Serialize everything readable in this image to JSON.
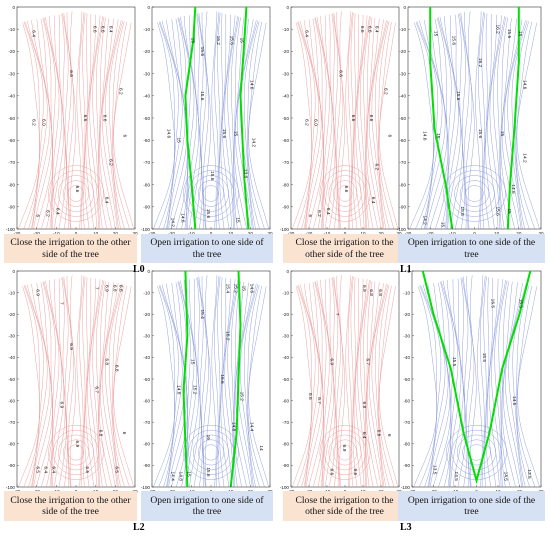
{
  "colors": {
    "close_bg": "#fbe3d2",
    "open_bg": "#d6e1f3",
    "red_line": "#e8908f",
    "blue_line": "#7f8fd6",
    "green_line": "#00e000"
  },
  "axes": {
    "xlim": [
      -30,
      30
    ],
    "ylim": [
      -100,
      0
    ]
  },
  "captions": [
    "Close the irrigation to the other side of the tree",
    "Open irrigation to one side of the tree",
    "Close the irrigation to the other side of the tree",
    "Open irrigation to one side of the tree"
  ],
  "panel_labels": [
    "L0",
    "L1",
    "L2",
    "L3"
  ],
  "chart_data": [
    {
      "type": "contour",
      "panel": "L0 close",
      "scheme": "red",
      "labels": [
        {
          "x": -22,
          "y": -12,
          "t": "6.4"
        },
        {
          "x": 9,
          "y": -10,
          "t": "6.6"
        },
        {
          "x": 13,
          "y": -10,
          "t": "6.6"
        },
        {
          "x": 17,
          "y": -10,
          "t": "6.4"
        },
        {
          "x": -3,
          "y": -30,
          "t": "6.6"
        },
        {
          "x": 22,
          "y": -38,
          "t": "6.2"
        },
        {
          "x": -22,
          "y": -52,
          "t": "6.2"
        },
        {
          "x": -17,
          "y": -52,
          "t": "6.0"
        },
        {
          "x": 4,
          "y": -50,
          "t": "6.6"
        },
        {
          "x": 14,
          "y": -50,
          "t": "6.6"
        },
        {
          "x": 24,
          "y": -58,
          "t": "6"
        },
        {
          "x": 17,
          "y": -70,
          "t": "6.2"
        },
        {
          "x": 0,
          "y": -82,
          "t": "6.6"
        },
        {
          "x": -10,
          "y": -92,
          "t": "6.4"
        },
        {
          "x": -15,
          "y": -93,
          "t": "6.2"
        },
        {
          "x": -20,
          "y": -94,
          "t": "6"
        },
        {
          "x": 15,
          "y": -87,
          "t": "6.4"
        }
      ]
    },
    {
      "type": "contour",
      "panel": "L0 open",
      "scheme": "blue",
      "labels": [
        {
          "x": -10,
          "y": -15,
          "t": "15"
        },
        {
          "x": -5,
          "y": -20,
          "t": "15.6"
        },
        {
          "x": 3,
          "y": -15,
          "t": "16.2"
        },
        {
          "x": 10,
          "y": -15,
          "t": "15.6"
        },
        {
          "x": 15,
          "y": -15,
          "t": "15"
        },
        {
          "x": -5,
          "y": -40,
          "t": "15.6"
        },
        {
          "x": 20,
          "y": -35,
          "t": "14.6"
        },
        {
          "x": -22,
          "y": -57,
          "t": "14.6"
        },
        {
          "x": -17,
          "y": -60,
          "t": "15"
        },
        {
          "x": 6,
          "y": -57,
          "t": "15.6"
        },
        {
          "x": 12,
          "y": -57,
          "t": "15"
        },
        {
          "x": 21,
          "y": -61,
          "t": "14.2"
        },
        {
          "x": 0,
          "y": -76,
          "t": "15.6"
        },
        {
          "x": 17,
          "y": -75,
          "t": "13.8"
        },
        {
          "x": -20,
          "y": -97,
          "t": "14.2"
        },
        {
          "x": -15,
          "y": -95,
          "t": "14.6"
        },
        {
          "x": -2,
          "y": -93,
          "t": "15.6"
        },
        {
          "x": 13,
          "y": -96,
          "t": "15"
        }
      ]
    },
    {
      "type": "contour",
      "panel": "L1 close",
      "scheme": "red",
      "labels": [
        {
          "x": -22,
          "y": -12,
          "t": "6.4"
        },
        {
          "x": 9,
          "y": -10,
          "t": "6.6"
        },
        {
          "x": 13,
          "y": -10,
          "t": "6.6"
        },
        {
          "x": 17,
          "y": -10,
          "t": "6.4"
        },
        {
          "x": -3,
          "y": -30,
          "t": "6.6"
        },
        {
          "x": 22,
          "y": -38,
          "t": "6.2"
        },
        {
          "x": -22,
          "y": -52,
          "t": "6.2"
        },
        {
          "x": -17,
          "y": -52,
          "t": "6.0"
        },
        {
          "x": 4,
          "y": -50,
          "t": "6.6"
        },
        {
          "x": 14,
          "y": -50,
          "t": "6.6"
        },
        {
          "x": 24,
          "y": -58,
          "t": "6"
        },
        {
          "x": 17,
          "y": -72,
          "t": "6.2"
        },
        {
          "x": 0,
          "y": -82,
          "t": "6.6"
        },
        {
          "x": -10,
          "y": -92,
          "t": "6.4"
        },
        {
          "x": -15,
          "y": -93,
          "t": "6.2"
        },
        {
          "x": -20,
          "y": -94,
          "t": "6"
        },
        {
          "x": 15,
          "y": -87,
          "t": "6.4"
        }
      ]
    },
    {
      "type": "contour",
      "panel": "L1 open",
      "scheme": "blue",
      "labels": [
        {
          "x": -18,
          "y": -12,
          "t": "15"
        },
        {
          "x": -10,
          "y": -15,
          "t": "15.6"
        },
        {
          "x": 2,
          "y": -25,
          "t": "16.2"
        },
        {
          "x": 10,
          "y": -10,
          "t": "16.2"
        },
        {
          "x": 15,
          "y": -12,
          "t": "15.6"
        },
        {
          "x": 20,
          "y": -12,
          "t": "15"
        },
        {
          "x": -8,
          "y": -40,
          "t": "15.6"
        },
        {
          "x": 22,
          "y": -35,
          "t": "14.6"
        },
        {
          "x": -23,
          "y": -58,
          "t": "14.6"
        },
        {
          "x": -17,
          "y": -58,
          "t": "15"
        },
        {
          "x": 2,
          "y": -57,
          "t": "15.6"
        },
        {
          "x": 12,
          "y": -57,
          "t": "15"
        },
        {
          "x": 22,
          "y": -68,
          "t": "14.2"
        },
        {
          "x": 17,
          "y": -82,
          "t": "14.6"
        },
        {
          "x": -23,
          "y": -96,
          "t": "14.2"
        },
        {
          "x": -15,
          "y": -98,
          "t": "15"
        },
        {
          "x": -6,
          "y": -92,
          "t": "15.6"
        },
        {
          "x": 10,
          "y": -92,
          "t": "15.6"
        },
        {
          "x": 15,
          "y": -92,
          "t": "15"
        }
      ]
    },
    {
      "type": "contour",
      "panel": "L2 close",
      "scheme": "red",
      "labels": [
        {
          "x": -20,
          "y": -10,
          "t": "6.9"
        },
        {
          "x": -8,
          "y": -15,
          "t": "7"
        },
        {
          "x": 10,
          "y": -8,
          "t": "7"
        },
        {
          "x": 15,
          "y": -8,
          "t": "6.9"
        },
        {
          "x": 19,
          "y": -8,
          "t": "6.8"
        },
        {
          "x": 22,
          "y": -8,
          "t": "6.8"
        },
        {
          "x": -3,
          "y": -35,
          "t": "6.9"
        },
        {
          "x": 15,
          "y": -42,
          "t": "6.8"
        },
        {
          "x": 20,
          "y": -45,
          "t": "6.8"
        },
        {
          "x": -8,
          "y": -62,
          "t": "6.9"
        },
        {
          "x": 10,
          "y": -55,
          "t": "6.7"
        },
        {
          "x": 12,
          "y": -75,
          "t": "6.8"
        },
        {
          "x": 24,
          "y": -75,
          "t": "6"
        },
        {
          "x": 0,
          "y": -80,
          "t": "6.9"
        },
        {
          "x": -20,
          "y": -92,
          "t": "6.5"
        },
        {
          "x": -16,
          "y": -92,
          "t": "6.4"
        },
        {
          "x": -12,
          "y": -92,
          "t": "6.4"
        },
        {
          "x": 5,
          "y": -92,
          "t": "6.6"
        },
        {
          "x": 20,
          "y": -92,
          "t": "6.5"
        }
      ]
    },
    {
      "type": "contour",
      "panel": "L2 open",
      "scheme": "blue",
      "labels": [
        {
          "x": -5,
          "y": -20,
          "t": "15.4"
        },
        {
          "x": 8,
          "y": -8,
          "t": "15.4"
        },
        {
          "x": 12,
          "y": -8,
          "t": "15.2"
        },
        {
          "x": 16,
          "y": -8,
          "t": "15"
        },
        {
          "x": 20,
          "y": -8,
          "t": "14.8"
        },
        {
          "x": 8,
          "y": -30,
          "t": "15.2"
        },
        {
          "x": -10,
          "y": -42,
          "t": "15"
        },
        {
          "x": -17,
          "y": -55,
          "t": "14.8"
        },
        {
          "x": -9,
          "y": -55,
          "t": "15.2"
        },
        {
          "x": 5,
          "y": -50,
          "t": "15.6"
        },
        {
          "x": 15,
          "y": -58,
          "t": "15.2"
        },
        {
          "x": 20,
          "y": -72,
          "t": "14.4"
        },
        {
          "x": 11,
          "y": -72,
          "t": "14.8"
        },
        {
          "x": -2,
          "y": -77,
          "t": "16"
        },
        {
          "x": 25,
          "y": -82,
          "t": "14"
        },
        {
          "x": -20,
          "y": -95,
          "t": "14.4"
        },
        {
          "x": -16,
          "y": -95,
          "t": "14.8"
        },
        {
          "x": -12,
          "y": -94,
          "t": "15"
        },
        {
          "x": -2,
          "y": -93,
          "t": "15.6"
        }
      ]
    },
    {
      "type": "contour",
      "panel": "L3 close",
      "scheme": "red",
      "labels": [
        {
          "x": -5,
          "y": -20,
          "t": "7"
        },
        {
          "x": 10,
          "y": -8,
          "t": "6.9"
        },
        {
          "x": 14,
          "y": -10,
          "t": "6.8"
        },
        {
          "x": 19,
          "y": -10,
          "t": "6.8"
        },
        {
          "x": -8,
          "y": -42,
          "t": "6.9"
        },
        {
          "x": 12,
          "y": -42,
          "t": "6.7"
        },
        {
          "x": -20,
          "y": -58,
          "t": "6.6"
        },
        {
          "x": -15,
          "y": -60,
          "t": "6.7"
        },
        {
          "x": 10,
          "y": -62,
          "t": "6.8"
        },
        {
          "x": 18,
          "y": -75,
          "t": "6.6"
        },
        {
          "x": 24,
          "y": -76,
          "t": "6"
        },
        {
          "x": 10,
          "y": -76,
          "t": "6.4"
        },
        {
          "x": -1,
          "y": -82,
          "t": "6.9"
        },
        {
          "x": -8,
          "y": -93,
          "t": "6.6"
        },
        {
          "x": 5,
          "y": -93,
          "t": "6.6"
        }
      ]
    },
    {
      "type": "contour",
      "panel": "L3 open",
      "scheme": "blue",
      "labels": [
        {
          "x": 7,
          "y": -15,
          "t": "16.5"
        },
        {
          "x": 20,
          "y": -15,
          "t": "15.5"
        },
        {
          "x": -11,
          "y": -42,
          "t": "15.5"
        },
        {
          "x": 3,
          "y": -40,
          "t": "15.5"
        },
        {
          "x": 17,
          "y": -60,
          "t": "14.5"
        },
        {
          "x": -20,
          "y": -92,
          "t": "13.5"
        },
        {
          "x": -10,
          "y": -95,
          "t": "14.5"
        },
        {
          "x": 13,
          "y": -95,
          "t": "14.5"
        },
        {
          "x": 24,
          "y": -94,
          "t": "13.5"
        }
      ]
    }
  ]
}
